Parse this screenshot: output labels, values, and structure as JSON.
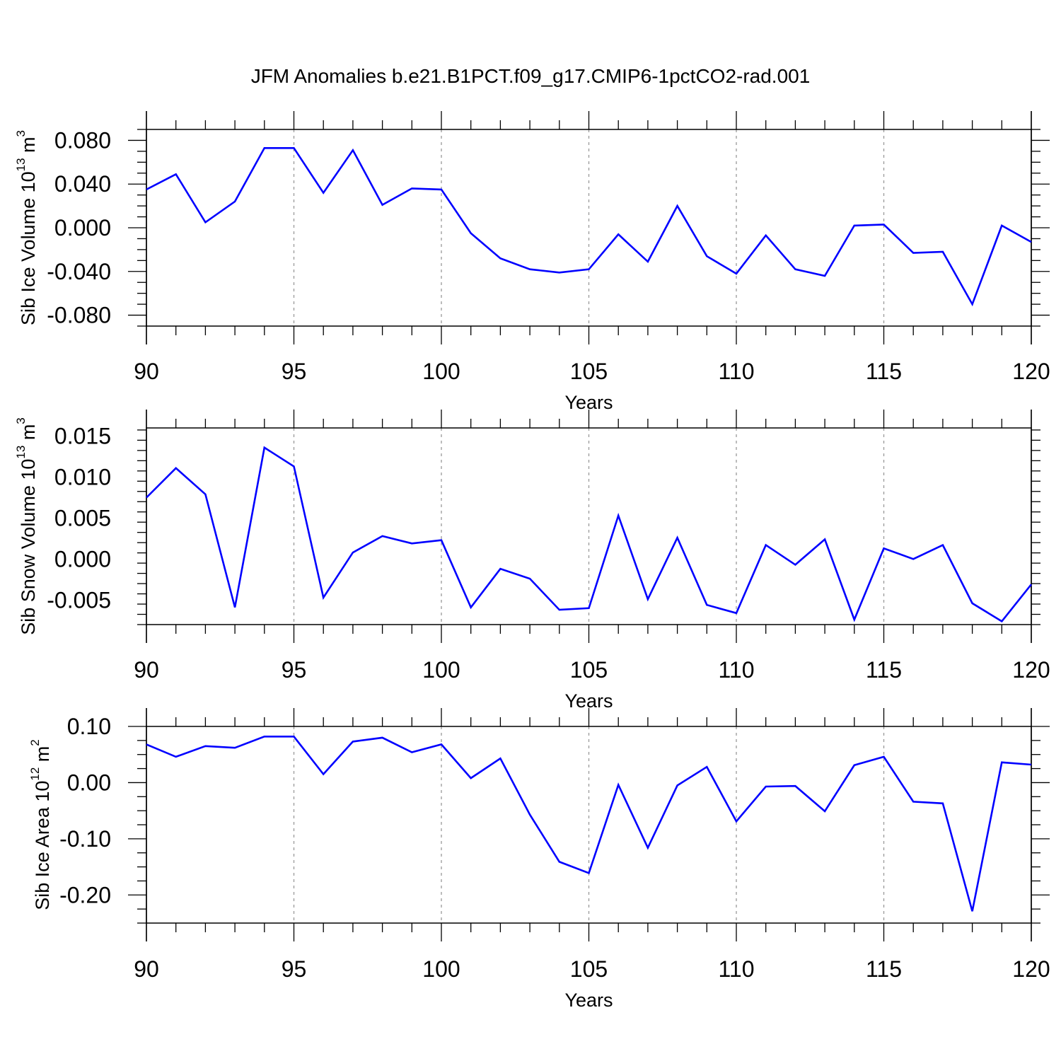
{
  "title": "JFM Anomalies b.e21.B1PCT.f09_g17.CMIP6-1pctCO2-rad.001",
  "line_color": "#0000ff",
  "chart_data": [
    {
      "type": "line",
      "xlabel": "Years",
      "ylabel": {
        "main": "Sib Ice Volume 10",
        "exp": "13",
        "unit": " m",
        "unit_exp": "3"
      },
      "xlim": [
        90,
        120
      ],
      "ylim": [
        -0.09,
        0.09
      ],
      "xticks": [
        90,
        95,
        100,
        105,
        110,
        115,
        120
      ],
      "xtick_labels": [
        "90",
        "95",
        "100",
        "105",
        "110",
        "115",
        "120"
      ],
      "yticks": [
        -0.08,
        -0.04,
        0.0,
        0.04,
        0.08
      ],
      "ytick_labels": [
        "-0.080",
        "-0.040",
        "0.000",
        "0.040",
        "0.080"
      ],
      "grid": "vertical dashed at major x ticks",
      "x": [
        90,
        91,
        92,
        93,
        94,
        95,
        96,
        97,
        98,
        99,
        100,
        101,
        102,
        103,
        104,
        105,
        106,
        107,
        108,
        109,
        110,
        111,
        112,
        113,
        114,
        115,
        116,
        117,
        118,
        119,
        120
      ],
      "series": [
        {
          "values": [
            0.035,
            0.049,
            0.005,
            0.024,
            0.073,
            0.073,
            0.032,
            0.071,
            0.021,
            0.036,
            0.035,
            -0.005,
            -0.028,
            -0.038,
            -0.041,
            -0.038,
            -0.006,
            -0.031,
            0.02,
            -0.026,
            -0.042,
            -0.007,
            -0.038,
            -0.044,
            0.002,
            0.003,
            -0.023,
            -0.022,
            -0.07,
            0.002,
            -0.013
          ]
        }
      ]
    },
    {
      "type": "line",
      "xlabel": "Years",
      "ylabel": {
        "main": "Sib Snow Volume 10",
        "exp": "13",
        "unit": " m",
        "unit_exp": "3"
      },
      "xlim": [
        90,
        120
      ],
      "ylim": [
        -0.008,
        0.016
      ],
      "xticks": [
        90,
        95,
        100,
        105,
        110,
        115,
        120
      ],
      "xtick_labels": [
        "90",
        "95",
        "100",
        "105",
        "110",
        "115",
        "120"
      ],
      "yticks": [
        -0.005,
        0.0,
        0.005,
        0.01,
        0.015
      ],
      "ytick_labels": [
        "-0.005",
        "0.000",
        "0.005",
        "0.010",
        "0.015"
      ],
      "grid": "vertical dashed at major x ticks",
      "x": [
        90,
        91,
        92,
        93,
        94,
        95,
        96,
        97,
        98,
        99,
        100,
        101,
        102,
        103,
        104,
        105,
        106,
        107,
        108,
        109,
        110,
        111,
        112,
        113,
        114,
        115,
        116,
        117,
        118,
        119,
        120
      ],
      "series": [
        {
          "values": [
            0.0075,
            0.0111,
            0.0079,
            -0.0059,
            0.0136,
            0.0113,
            -0.0047,
            0.0008,
            0.0028,
            0.0019,
            0.0023,
            -0.0059,
            -0.0012,
            -0.0024,
            -0.0062,
            -0.006,
            0.0053,
            -0.0049,
            0.0026,
            -0.0056,
            -0.0066,
            0.0017,
            -0.0007,
            0.0024,
            -0.0074,
            0.0013,
            0.0,
            0.0017,
            -0.0054,
            -0.0076,
            -0.0031
          ]
        }
      ]
    },
    {
      "type": "line",
      "xlabel": "Years",
      "ylabel": {
        "main": "Sib Ice Area 10",
        "exp": "12",
        "unit": " m",
        "unit_exp": "2"
      },
      "xlim": [
        90,
        120
      ],
      "ylim": [
        -0.25,
        0.1
      ],
      "xticks": [
        90,
        95,
        100,
        105,
        110,
        115,
        120
      ],
      "xtick_labels": [
        "90",
        "95",
        "100",
        "105",
        "110",
        "115",
        "120"
      ],
      "yticks": [
        -0.2,
        -0.1,
        0.0,
        0.1
      ],
      "ytick_labels": [
        "-0.20",
        "-0.10",
        "0.00",
        "0.10"
      ],
      "grid": "vertical dashed at major x ticks",
      "x": [
        90,
        91,
        92,
        93,
        94,
        95,
        96,
        97,
        98,
        99,
        100,
        101,
        102,
        103,
        104,
        105,
        106,
        107,
        108,
        109,
        110,
        111,
        112,
        113,
        114,
        115,
        116,
        117,
        118,
        119,
        120
      ],
      "series": [
        {
          "values": [
            0.068,
            0.046,
            0.065,
            0.062,
            0.082,
            0.082,
            0.015,
            0.073,
            0.08,
            0.054,
            0.068,
            0.008,
            0.043,
            -0.057,
            -0.141,
            -0.161,
            -0.004,
            -0.116,
            -0.005,
            0.028,
            -0.069,
            -0.007,
            -0.006,
            -0.051,
            0.031,
            0.046,
            -0.034,
            -0.037,
            -0.229,
            0.036,
            0.032
          ]
        }
      ]
    }
  ]
}
